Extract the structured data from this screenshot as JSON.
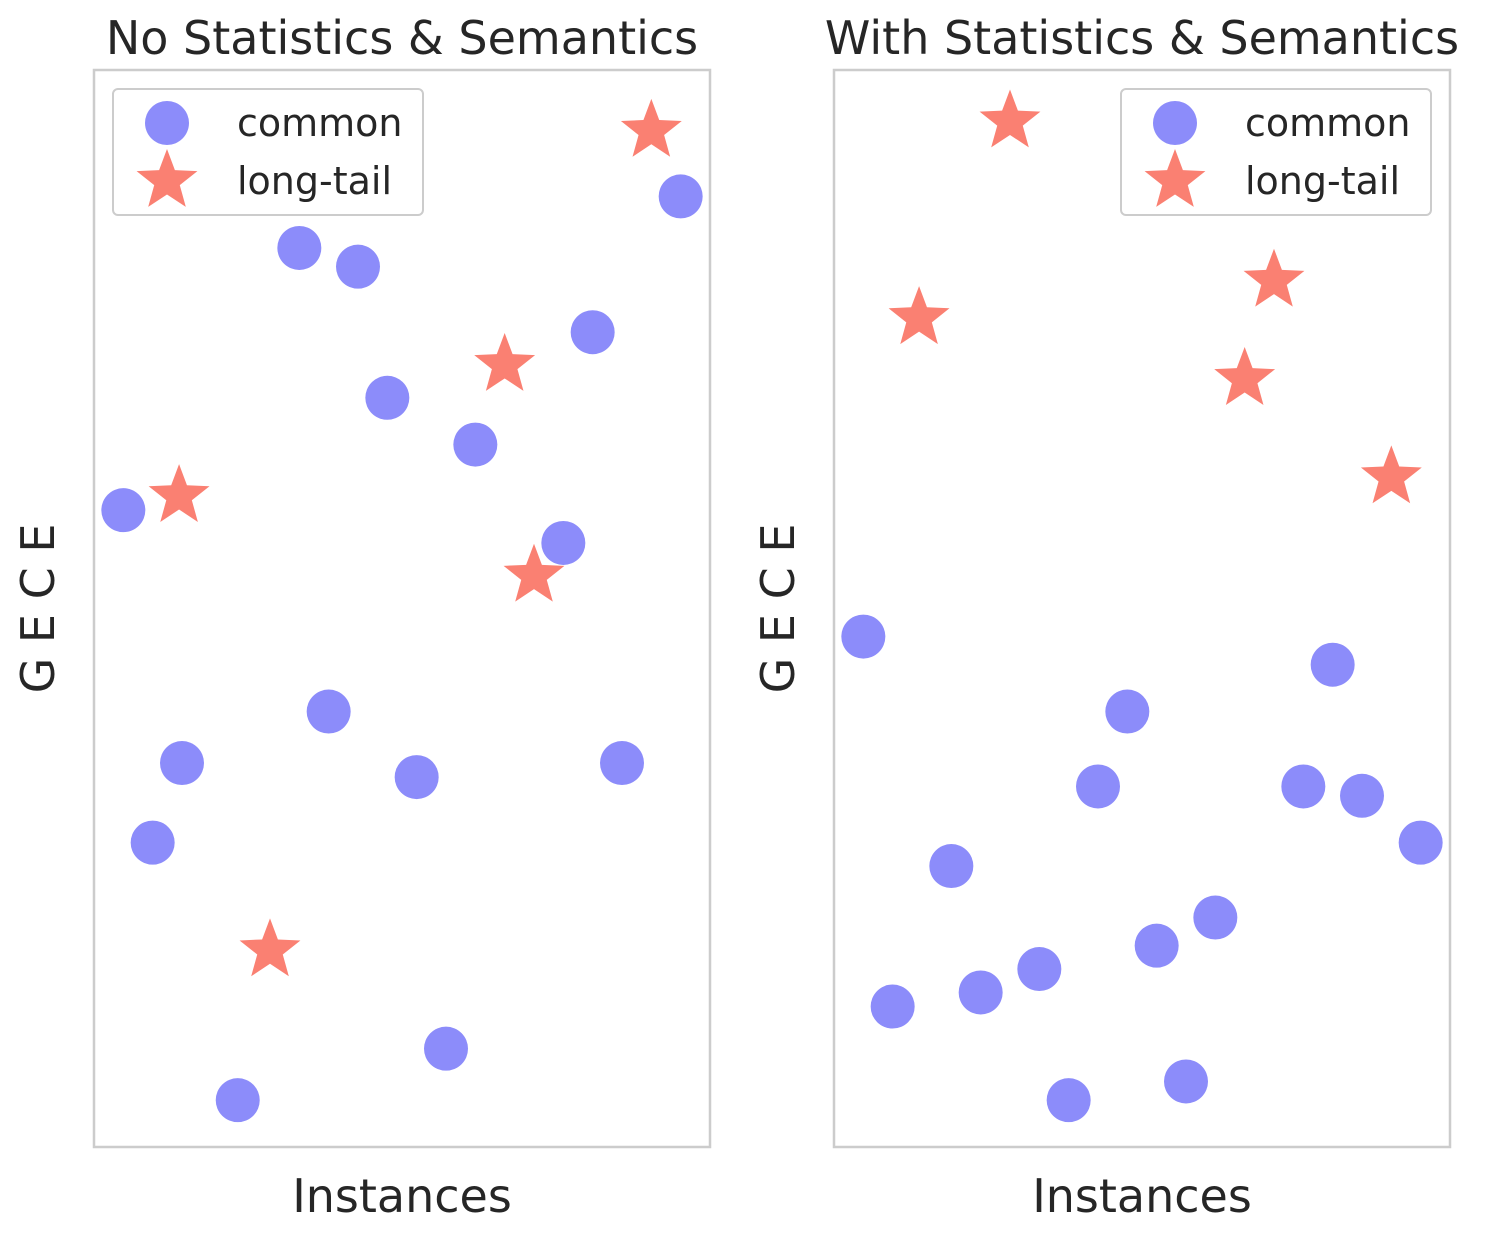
{
  "charts_meta": {
    "marker_colors": {
      "common": "#8c8cfa",
      "long-tail": "#fa8072"
    },
    "frame_color": "#cccccc",
    "text_color": "#262626"
  },
  "chart_data": [
    {
      "type": "scatter",
      "title": "No Statistics & Semantics",
      "xlabel": "Instances",
      "ylabel": "G E C E",
      "xlim": [
        0,
        21
      ],
      "ylim": [
        0,
        23
      ],
      "grid": false,
      "show_ticks": false,
      "legend": {
        "placement": "top-left",
        "entries": [
          "common",
          "long-tail"
        ]
      },
      "series": [
        {
          "name": "common",
          "marker": "circle",
          "points": [
            {
              "x": 1.0,
              "y": 13.6
            },
            {
              "x": 2.0,
              "y": 6.5
            },
            {
              "x": 3.0,
              "y": 8.2
            },
            {
              "x": 4.9,
              "y": 1.0
            },
            {
              "x": 7.0,
              "y": 19.2
            },
            {
              "x": 8.0,
              "y": 9.3
            },
            {
              "x": 9.0,
              "y": 18.8
            },
            {
              "x": 10.0,
              "y": 16.0
            },
            {
              "x": 11.0,
              "y": 7.9
            },
            {
              "x": 12.0,
              "y": 2.1
            },
            {
              "x": 13.0,
              "y": 15.0
            },
            {
              "x": 16.0,
              "y": 12.9
            },
            {
              "x": 17.0,
              "y": 17.4
            },
            {
              "x": 18.0,
              "y": 8.2
            },
            {
              "x": 20.0,
              "y": 20.3
            }
          ]
        },
        {
          "name": "long-tail",
          "marker": "star",
          "points": [
            {
              "x": 2.9,
              "y": 13.9
            },
            {
              "x": 6.0,
              "y": 4.2
            },
            {
              "x": 14.0,
              "y": 16.7
            },
            {
              "x": 15.0,
              "y": 12.2
            },
            {
              "x": 19.0,
              "y": 21.7
            }
          ]
        }
      ]
    },
    {
      "type": "scatter",
      "title": "With Statistics & Semantics",
      "xlabel": "Instances",
      "ylabel": "G E C E",
      "xlim": [
        0,
        21
      ],
      "ylim": [
        0,
        23
      ],
      "grid": false,
      "show_ticks": false,
      "legend": {
        "placement": "top-right",
        "entries": [
          "common",
          "long-tail"
        ]
      },
      "series": [
        {
          "name": "common",
          "marker": "circle",
          "points": [
            {
              "x": 1.0,
              "y": 10.9
            },
            {
              "x": 2.0,
              "y": 3.0
            },
            {
              "x": 4.0,
              "y": 6.0
            },
            {
              "x": 5.0,
              "y": 3.3
            },
            {
              "x": 7.0,
              "y": 3.8
            },
            {
              "x": 8.0,
              "y": 1.0
            },
            {
              "x": 9.0,
              "y": 7.7
            },
            {
              "x": 10.0,
              "y": 9.3
            },
            {
              "x": 11.0,
              "y": 4.3
            },
            {
              "x": 12.0,
              "y": 1.4
            },
            {
              "x": 13.0,
              "y": 4.9
            },
            {
              "x": 16.0,
              "y": 7.7
            },
            {
              "x": 17.0,
              "y": 10.3
            },
            {
              "x": 18.0,
              "y": 7.5
            },
            {
              "x": 20.0,
              "y": 6.5
            }
          ]
        },
        {
          "name": "long-tail",
          "marker": "star",
          "points": [
            {
              "x": 2.9,
              "y": 17.7
            },
            {
              "x": 6.0,
              "y": 21.9
            },
            {
              "x": 14.0,
              "y": 16.4
            },
            {
              "x": 15.0,
              "y": 18.5
            },
            {
              "x": 19.0,
              "y": 14.3
            }
          ]
        }
      ]
    }
  ]
}
